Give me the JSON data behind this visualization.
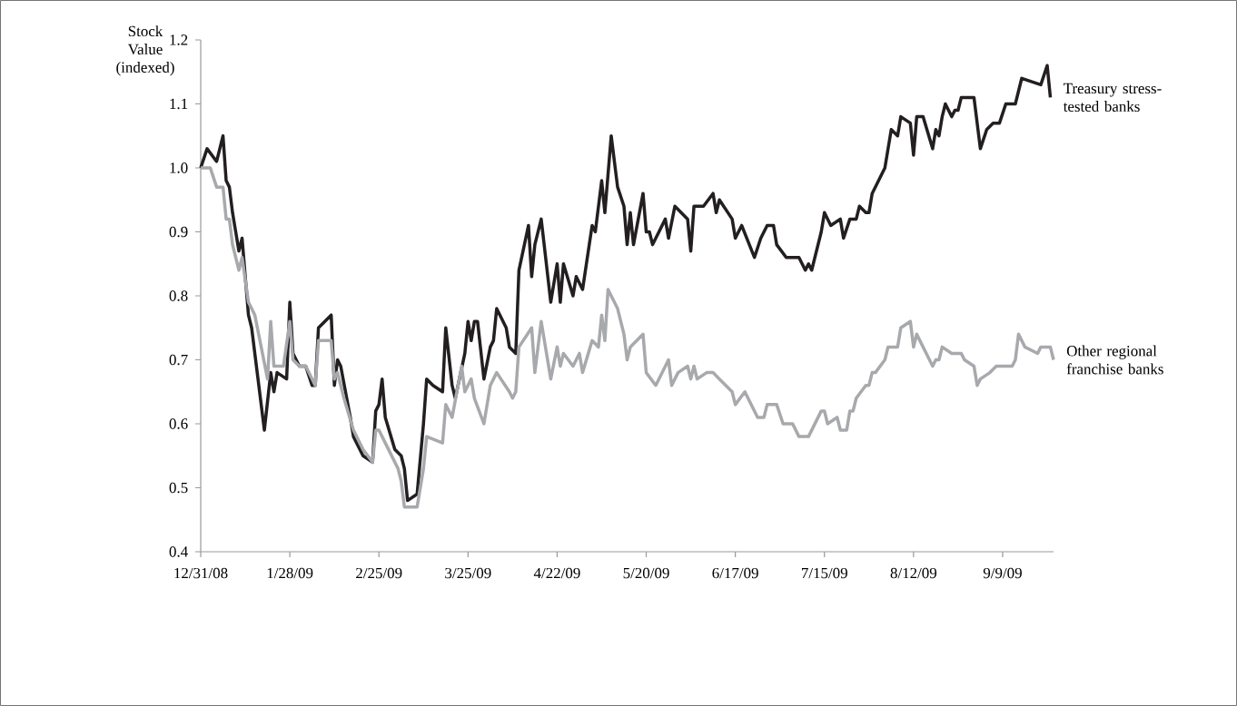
{
  "chart_data": {
    "type": "line",
    "ylabel": "Stock Value (indexed)",
    "xlim": [
      "2008-12-31",
      "2009-09-25"
    ],
    "ylim": [
      0.4,
      1.2
    ],
    "xticks": [
      {
        "value": "2008-12-31",
        "label": "12/31/08"
      },
      {
        "value": "2009-01-28",
        "label": "1/28/09"
      },
      {
        "value": "2009-02-25",
        "label": "2/25/09"
      },
      {
        "value": "2009-03-25",
        "label": "3/25/09"
      },
      {
        "value": "2009-04-22",
        "label": "4/22/09"
      },
      {
        "value": "2009-05-20",
        "label": "5/20/09"
      },
      {
        "value": "2009-06-17",
        "label": "6/17/09"
      },
      {
        "value": "2009-07-15",
        "label": "7/15/09"
      },
      {
        "value": "2009-08-12",
        "label": "8/12/09"
      },
      {
        "value": "2009-09-09",
        "label": "9/9/09"
      }
    ],
    "yticks": [
      0.4,
      0.5,
      0.6,
      0.7,
      0.8,
      0.9,
      {
        "value": 1.0,
        "label": "1.0"
      },
      1.1,
      1.2
    ],
    "series": [
      {
        "name": "Treasury stress-tested banks",
        "color": "#231f20",
        "x": [
          "2008-12-31",
          "2009-01-02",
          "2009-01-05",
          "2009-01-07",
          "2009-01-08",
          "2009-01-09",
          "2009-01-10",
          "2009-01-12",
          "2009-01-13",
          "2009-01-15",
          "2009-01-16",
          "2009-01-20",
          "2009-01-22",
          "2009-01-23",
          "2009-01-24",
          "2009-01-27",
          "2009-01-28",
          "2009-01-29",
          "2009-01-31",
          "2009-02-02",
          "2009-02-04",
          "2009-02-05",
          "2009-02-06",
          "2009-02-10",
          "2009-02-11",
          "2009-02-12",
          "2009-02-13",
          "2009-02-16",
          "2009-02-17",
          "2009-02-20",
          "2009-02-23",
          "2009-02-24",
          "2009-02-25",
          "2009-02-26",
          "2009-02-27",
          "2009-03-02",
          "2009-03-04",
          "2009-03-05",
          "2009-03-06",
          "2009-03-09",
          "2009-03-11",
          "2009-03-12",
          "2009-03-14",
          "2009-03-17",
          "2009-03-18",
          "2009-03-20",
          "2009-03-21",
          "2009-03-24",
          "2009-03-25",
          "2009-03-26",
          "2009-03-27",
          "2009-03-28",
          "2009-03-30",
          "2009-04-01",
          "2009-04-02",
          "2009-04-03",
          "2009-04-06",
          "2009-04-07",
          "2009-04-09",
          "2009-04-10",
          "2009-04-13",
          "2009-04-14",
          "2009-04-15",
          "2009-04-17",
          "2009-04-20",
          "2009-04-22",
          "2009-04-23",
          "2009-04-24",
          "2009-04-27",
          "2009-04-28",
          "2009-04-30",
          "2009-05-03",
          "2009-05-04",
          "2009-05-06",
          "2009-05-07",
          "2009-05-09",
          "2009-05-11",
          "2009-05-13",
          "2009-05-14",
          "2009-05-15",
          "2009-05-16",
          "2009-05-19",
          "2009-05-20",
          "2009-05-21",
          "2009-05-22",
          "2009-05-26",
          "2009-05-27",
          "2009-05-29",
          "2009-06-02",
          "2009-06-03",
          "2009-06-04",
          "2009-06-07",
          "2009-06-10",
          "2009-06-11",
          "2009-06-12",
          "2009-06-16",
          "2009-06-17",
          "2009-06-19",
          "2009-06-23",
          "2009-06-25",
          "2009-06-27",
          "2009-06-29",
          "2009-06-30",
          "2009-07-03",
          "2009-07-07",
          "2009-07-09",
          "2009-07-10",
          "2009-07-11",
          "2009-07-14",
          "2009-07-15",
          "2009-07-17",
          "2009-07-20",
          "2009-07-21",
          "2009-07-23",
          "2009-07-25",
          "2009-07-26",
          "2009-07-28",
          "2009-07-29",
          "2009-07-30",
          "2009-08-03",
          "2009-08-05",
          "2009-08-07",
          "2009-08-08",
          "2009-08-11",
          "2009-08-12",
          "2009-08-13",
          "2009-08-15",
          "2009-08-18",
          "2009-08-19",
          "2009-08-20",
          "2009-08-21",
          "2009-08-22",
          "2009-08-24",
          "2009-08-25",
          "2009-08-26",
          "2009-08-27",
          "2009-08-31",
          "2009-09-02",
          "2009-09-04",
          "2009-09-06",
          "2009-09-08",
          "2009-09-10",
          "2009-09-13",
          "2009-09-15",
          "2009-09-21",
          "2009-09-23",
          "2009-09-24"
        ],
        "values": [
          1.0,
          1.03,
          1.01,
          1.05,
          0.98,
          0.97,
          0.93,
          0.87,
          0.89,
          0.77,
          0.75,
          0.59,
          0.68,
          0.65,
          0.68,
          0.67,
          0.79,
          0.71,
          0.69,
          0.69,
          0.66,
          0.66,
          0.75,
          0.77,
          0.66,
          0.7,
          0.69,
          0.61,
          0.58,
          0.55,
          0.54,
          0.62,
          0.63,
          0.67,
          0.61,
          0.56,
          0.55,
          0.53,
          0.48,
          0.49,
          0.6,
          0.67,
          0.66,
          0.65,
          0.75,
          0.66,
          0.64,
          0.71,
          0.76,
          0.73,
          0.76,
          0.76,
          0.67,
          0.72,
          0.73,
          0.78,
          0.75,
          0.72,
          0.71,
          0.84,
          0.91,
          0.83,
          0.88,
          0.92,
          0.79,
          0.85,
          0.79,
          0.85,
          0.8,
          0.83,
          0.81,
          0.91,
          0.9,
          0.98,
          0.93,
          1.05,
          0.97,
          0.94,
          0.88,
          0.93,
          0.88,
          0.96,
          0.9,
          0.9,
          0.88,
          0.92,
          0.89,
          0.94,
          0.92,
          0.87,
          0.94,
          0.94,
          0.96,
          0.93,
          0.95,
          0.92,
          0.89,
          0.91,
          0.86,
          0.89,
          0.91,
          0.91,
          0.88,
          0.86,
          0.86,
          0.84,
          0.85,
          0.84,
          0.9,
          0.93,
          0.91,
          0.92,
          0.89,
          0.92,
          0.92,
          0.94,
          0.93,
          0.93,
          0.96,
          1.0,
          1.06,
          1.05,
          1.08,
          1.07,
          1.02,
          1.08,
          1.08,
          1.03,
          1.06,
          1.05,
          1.08,
          1.1,
          1.08,
          1.09,
          1.09,
          1.11,
          1.11,
          1.03,
          1.06,
          1.07,
          1.07,
          1.1,
          1.1,
          1.14,
          1.13,
          1.16,
          1.11
        ]
      },
      {
        "name": "Other regional franchise banks",
        "color": "#a7a9ac",
        "x": [
          "2008-12-31",
          "2009-01-03",
          "2009-01-05",
          "2009-01-07",
          "2009-01-08",
          "2009-01-09",
          "2009-01-10",
          "2009-01-12",
          "2009-01-13",
          "2009-01-15",
          "2009-01-17",
          "2009-01-21",
          "2009-01-22",
          "2009-01-23",
          "2009-01-26",
          "2009-01-28",
          "2009-01-29",
          "2009-01-31",
          "2009-02-02",
          "2009-02-05",
          "2009-02-06",
          "2009-02-10",
          "2009-02-11",
          "2009-02-12",
          "2009-02-14",
          "2009-02-17",
          "2009-02-20",
          "2009-02-23",
          "2009-02-24",
          "2009-02-25",
          "2009-02-27",
          "2009-03-03",
          "2009-03-04",
          "2009-03-05",
          "2009-03-09",
          "2009-03-11",
          "2009-03-12",
          "2009-03-17",
          "2009-03-18",
          "2009-03-20",
          "2009-03-23",
          "2009-03-24",
          "2009-03-26",
          "2009-03-27",
          "2009-03-30",
          "2009-04-01",
          "2009-04-03",
          "2009-04-07",
          "2009-04-08",
          "2009-04-09",
          "2009-04-10",
          "2009-04-14",
          "2009-04-15",
          "2009-04-16",
          "2009-04-17",
          "2009-04-20",
          "2009-04-22",
          "2009-04-23",
          "2009-04-24",
          "2009-04-27",
          "2009-04-29",
          "2009-04-30",
          "2009-05-03",
          "2009-05-05",
          "2009-05-06",
          "2009-05-07",
          "2009-05-08",
          "2009-05-11",
          "2009-05-13",
          "2009-05-14",
          "2009-05-15",
          "2009-05-19",
          "2009-05-20",
          "2009-05-23",
          "2009-05-27",
          "2009-05-28",
          "2009-05-30",
          "2009-06-02",
          "2009-06-03",
          "2009-06-04",
          "2009-06-05",
          "2009-06-08",
          "2009-06-10",
          "2009-06-12",
          "2009-06-14",
          "2009-06-16",
          "2009-06-17",
          "2009-06-20",
          "2009-06-24",
          "2009-06-26",
          "2009-06-27",
          "2009-06-30",
          "2009-07-02",
          "2009-07-05",
          "2009-07-07",
          "2009-07-10",
          "2009-07-13",
          "2009-07-14",
          "2009-07-15",
          "2009-07-16",
          "2009-07-19",
          "2009-07-20",
          "2009-07-22",
          "2009-07-23",
          "2009-07-24",
          "2009-07-25",
          "2009-07-28",
          "2009-07-29",
          "2009-07-30",
          "2009-07-31",
          "2009-08-03",
          "2009-08-04",
          "2009-08-07",
          "2009-08-08",
          "2009-08-11",
          "2009-08-12",
          "2009-08-13",
          "2009-08-18",
          "2009-08-19",
          "2009-08-20",
          "2009-08-21",
          "2009-08-24",
          "2009-08-27",
          "2009-08-28",
          "2009-08-31",
          "2009-09-01",
          "2009-09-02",
          "2009-09-05",
          "2009-09-07",
          "2009-09-12",
          "2009-09-13",
          "2009-09-14",
          "2009-09-16",
          "2009-09-20",
          "2009-09-21",
          "2009-09-24",
          "2009-09-25"
        ],
        "values": [
          1.0,
          1.0,
          0.97,
          0.97,
          0.92,
          0.92,
          0.88,
          0.84,
          0.86,
          0.79,
          0.77,
          0.67,
          0.76,
          0.69,
          0.69,
          0.76,
          0.7,
          0.69,
          0.69,
          0.66,
          0.73,
          0.73,
          0.67,
          0.68,
          0.64,
          0.59,
          0.56,
          0.54,
          0.59,
          0.59,
          0.57,
          0.53,
          0.51,
          0.47,
          0.47,
          0.53,
          0.58,
          0.57,
          0.63,
          0.61,
          0.69,
          0.65,
          0.67,
          0.64,
          0.6,
          0.66,
          0.68,
          0.65,
          0.64,
          0.65,
          0.72,
          0.75,
          0.68,
          0.72,
          0.76,
          0.67,
          0.72,
          0.69,
          0.71,
          0.69,
          0.71,
          0.68,
          0.73,
          0.72,
          0.77,
          0.73,
          0.81,
          0.78,
          0.74,
          0.7,
          0.72,
          0.74,
          0.68,
          0.66,
          0.7,
          0.66,
          0.68,
          0.69,
          0.67,
          0.69,
          0.67,
          0.68,
          0.68,
          0.67,
          0.66,
          0.65,
          0.63,
          0.65,
          0.61,
          0.61,
          0.63,
          0.63,
          0.6,
          0.6,
          0.58,
          0.58,
          0.61,
          0.62,
          0.62,
          0.6,
          0.61,
          0.59,
          0.59,
          0.62,
          0.62,
          0.64,
          0.66,
          0.66,
          0.68,
          0.68,
          0.7,
          0.72,
          0.72,
          0.75,
          0.76,
          0.72,
          0.74,
          0.69,
          0.7,
          0.7,
          0.72,
          0.71,
          0.71,
          0.7,
          0.69,
          0.66,
          0.67,
          0.68,
          0.69,
          0.69,
          0.7,
          0.74,
          0.72,
          0.71,
          0.72,
          0.72,
          0.7
        ]
      }
    ]
  }
}
